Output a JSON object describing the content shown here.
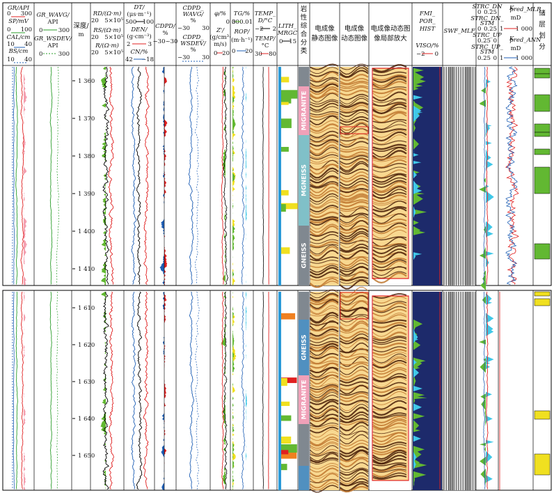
{
  "headers": {
    "gr": "GR/API",
    "gr_range": [
      "0",
      "300"
    ],
    "sp": "SP/mV",
    "sp_range": [
      "0",
      "100"
    ],
    "cal": "CAL/cm",
    "cal_range": [
      "10",
      "40"
    ],
    "bs": "BS/cm",
    "bs_range": [
      "10",
      "40"
    ],
    "gr_wavg": "GR_WAVG/",
    "gr_wavg_unit": "API",
    "gr_wavg_range": [
      "0",
      "300"
    ],
    "gr_wsdev": "GR_WSDEV/",
    "gr_wsdev_unit": "API",
    "gr_wsdev_range": [
      "0",
      "300"
    ],
    "depth": "深度/",
    "depth_unit": "m",
    "rd": "RD/(Ω·m)",
    "rd_range": [
      "20",
      "5×10⁵"
    ],
    "rs": "RS/(Ω·m)",
    "rs_range": [
      "20",
      "5×10⁵"
    ],
    "r_mid": "R/(Ω·m)",
    "r_mid_range": [
      "20",
      "5×10⁵"
    ],
    "dt": "DT/",
    "dt_unit": "(μs·m⁻¹)",
    "dt_range": [
      "500",
      "100"
    ],
    "den": "DEN/",
    "den_unit": "(g·cm⁻³)",
    "den_range": [
      "2",
      "3"
    ],
    "cn": "CN/%",
    "cn_range": [
      "42",
      "−18"
    ],
    "cdpd": "CDPD/",
    "cdpd_unit": "%",
    "cdpd_range": [
      "−30",
      "30"
    ],
    "cdpd_wavg": "CDPD_",
    "cdpd_wavg2": "WAVG/",
    "cdpd_wavg_unit": "%",
    "cdpd_wavg_range": [
      "−30",
      "30"
    ],
    "cdpd_wsdev": "CDPD_",
    "cdpd_wsdev2": "WSDEV/",
    "cdpd_wsdev_unit": "%",
    "cdpd_wsdev_range": [
      "−30",
      "30"
    ],
    "phi": "φ/%",
    "phi_range": [
      "30",
      "0"
    ],
    "zi": "Z'/",
    "zi_unit": "(g/cm³·",
    "zi_unit2": "m/s)",
    "zi_range": [
      "0",
      "20"
    ],
    "tg": "TG/%",
    "tg_range": [
      "0",
      "0.01"
    ],
    "rop": "ROP/",
    "rop_unit": "(m·h⁻¹)",
    "rop_range": [
      "0",
      "20"
    ],
    "temp_d": "TEMP_",
    "temp_d2": "D/°C",
    "temp_d_range": [
      "−2",
      "2"
    ],
    "temp": "TEMP/",
    "temp_unit": "°C",
    "temp_range": [
      "30",
      "80"
    ],
    "lith": "LITH_",
    "lith2": "MRGC",
    "lith_range": [
      "0",
      "15"
    ],
    "litho_class": [
      "岩",
      "性",
      "综",
      "合",
      "分",
      "类"
    ],
    "static_img": [
      "电成像",
      "静态图像"
    ],
    "dynamic_img": [
      "电成像",
      "动态图像"
    ],
    "zoom_img": [
      "电成像动态图",
      "像局部放大"
    ],
    "fmi": "FMI_",
    "fmi2": "POR_",
    "fmi3": "HIST",
    "viso": "VISO/%",
    "viso_range": [
      "−2",
      "0"
    ],
    "swf": "SWF_MLF",
    "strc_dn": "STRC_DN",
    "strc_dn_range": [
      "0",
      "0.25"
    ],
    "strc_dn_stm": "STRC_DN_",
    "strc_dn_stm2": "STM",
    "strc_dn_stm_range": [
      "0",
      "0.25"
    ],
    "strc_up": "STRC_UP",
    "strc_up_range": [
      "0.25",
      "0"
    ],
    "strc_up_stm": "STRC_UP_",
    "strc_up_stm2": "STM",
    "strc_up_stm_range": [
      "0.25",
      "0"
    ],
    "k_mlr": "K",
    "k_mlr_sub": "pred_MLR",
    "k_mlr_unit": "mD",
    "k_mlr_range": [
      "1",
      "1 000"
    ],
    "k_ann": "K",
    "k_ann_sub": "pred_ANN",
    "k_ann_unit": "mD",
    "k_ann_range": [
      "1",
      "1 000"
    ],
    "reservoir": [
      "储",
      "层",
      "划",
      "分"
    ]
  },
  "upper_depth_ticks": [
    "1 360",
    "1 370",
    "1 380",
    "1 390",
    "1 400",
    "1 410"
  ],
  "lower_depth_ticks": [
    "1 610",
    "1 620",
    "1 630",
    "1 640",
    "1 650"
  ],
  "litho_upper": [
    "MIGRANITE",
    "MGNEISS",
    "GNEISS"
  ],
  "litho_lower": [
    "GNEISS",
    "MIGRANITE"
  ],
  "colors": {
    "gr_fill": "#f08080",
    "gr_wavg": "#2a9d2a",
    "pink": "#f4a0b0",
    "red": "#e02020",
    "blue": "#1f5fb5",
    "green": "#62b832",
    "yellow": "#f0e020",
    "cyan": "#40c8e8",
    "navy": "#1d2a6b",
    "litho_gray": "#808890",
    "litho_pink": "#f0a0b8",
    "litho_teal": "#80c0c8",
    "litho_blue": "#5090c0",
    "img_dark": "#4a2008",
    "img_light": "#f8d890"
  }
}
